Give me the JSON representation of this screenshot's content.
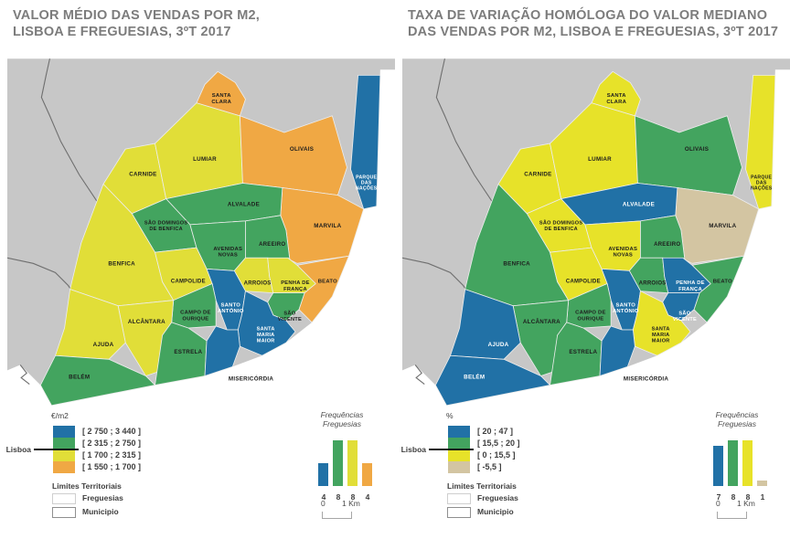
{
  "panels": [
    {
      "title_line1": "VALOR MÉDIO DAS VENDAS POR M2,",
      "title_line2": "LISBOA E FREGUESIAS, 3ºT 2017",
      "legend": {
        "unit": "€/m2",
        "lisboa_label": "Lisboa",
        "classes": [
          {
            "label": "[ 2 750 ; 3 440 ]",
            "color": "#2171A6"
          },
          {
            "label": "[ 2 315 ; 2 750 ]",
            "color": "#43A45F"
          },
          {
            "label": "[ 1 700 ; 2 315 ]",
            "color": "#E1DE38"
          },
          {
            "label": "[ 1 550 ; 1 700 ]",
            "color": "#F0A844"
          }
        ],
        "limites_title": "Limites Territoriais",
        "limites_items": [
          "Freguesias",
          "Municipio"
        ]
      },
      "histogram": {
        "title_line1": "Frequências",
        "title_line2": "Freguesias",
        "values": [
          4,
          8,
          8,
          4
        ]
      },
      "scalebar": {
        "zero": "0",
        "one": "1 Km"
      },
      "region_classes": {
        "carnide": 2,
        "lumiar": 2,
        "santa-clara": 3,
        "olivais": 3,
        "parque-das-nacoes": 0,
        "marvila": 3,
        "beato": 3,
        "alvalade": 1,
        "sao-domingos-de-benfica": 1,
        "avenidas-novas": 1,
        "areeiro": 1,
        "benfica": 2,
        "campolide": 2,
        "arroios": 2,
        "penha-de-franca": 2,
        "santo-antonio": 0,
        "sao-vicente": 1,
        "campo-de-ourique": 1,
        "alcantara": 2,
        "ajuda": 2,
        "belem": 1,
        "estrela": 1,
        "santa-maria-maior": 0,
        "misericordia": 0
      }
    },
    {
      "title_line1": "TAXA DE VARIAÇÃO HOMÓLOGA DO VALOR MEDIANO",
      "title_line2": "DAS VENDAS POR M2, LISBOA E FREGUESIAS, 3ºT 2017",
      "legend": {
        "unit": "%",
        "lisboa_label": "Lisboa",
        "classes": [
          {
            "label": "[ 20 ; 47 ]",
            "color": "#2171A6"
          },
          {
            "label": "[ 15,5 ; 20 ]",
            "color": "#43A45F"
          },
          {
            "label": "[ 0 ; 15,5 ]",
            "color": "#E7E229"
          },
          {
            "label": "[ -5,5 ]",
            "color": "#D3C5A2"
          }
        ],
        "limites_title": "Limites Territoriais",
        "limites_items": [
          "Freguesias",
          "Municipio"
        ]
      },
      "histogram": {
        "title_line1": "Frequências",
        "title_line2": "Freguesias",
        "values": [
          7,
          8,
          8,
          1
        ]
      },
      "scalebar": {
        "zero": "0",
        "one": "1 Km"
      },
      "region_classes": {
        "carnide": 2,
        "lumiar": 2,
        "santa-clara": 2,
        "olivais": 1,
        "parque-das-nacoes": 2,
        "marvila": 3,
        "beato": 1,
        "alvalade": 0,
        "sao-domingos-de-benfica": 2,
        "avenidas-novas": 2,
        "areeiro": 1,
        "benfica": 1,
        "campolide": 2,
        "arroios": 1,
        "penha-de-franca": 0,
        "santo-antonio": 0,
        "sao-vicente": 0,
        "campo-de-ourique": 1,
        "alcantara": 1,
        "ajuda": 0,
        "belem": 0,
        "estrela": 1,
        "santa-maria-maior": 2,
        "misericordia": 0
      }
    }
  ],
  "map": {
    "land_color": "#C7C7C7",
    "border_color": "#EDEDED",
    "municipal_line_color": "#6F6F6F",
    "regions": [
      {
        "id": "carnide",
        "lines": [
          "CARNIDE"
        ]
      },
      {
        "id": "lumiar",
        "lines": [
          "LUMIAR"
        ]
      },
      {
        "id": "santa-clara",
        "lines": [
          "SANTA",
          "CLARA"
        ]
      },
      {
        "id": "olivais",
        "lines": [
          "OLIVAIS"
        ]
      },
      {
        "id": "parque-das-nacoes",
        "lines": [
          "PARQUE",
          "DAS",
          "NAÇÕES"
        ]
      },
      {
        "id": "marvila",
        "lines": [
          "MARVILA"
        ]
      },
      {
        "id": "beato",
        "lines": [
          "BEATO"
        ]
      },
      {
        "id": "alvalade",
        "lines": [
          "ALVALADE"
        ]
      },
      {
        "id": "sao-domingos-de-benfica",
        "lines": [
          "SÃO DOMINGOS",
          "DE BENFICA"
        ]
      },
      {
        "id": "avenidas-novas",
        "lines": [
          "AVENIDAS",
          "NOVAS"
        ]
      },
      {
        "id": "areeiro",
        "lines": [
          "AREEIRO"
        ]
      },
      {
        "id": "benfica",
        "lines": [
          "BENFICA"
        ]
      },
      {
        "id": "campolide",
        "lines": [
          "CAMPOLIDE"
        ]
      },
      {
        "id": "arroios",
        "lines": [
          "ARROIOS"
        ]
      },
      {
        "id": "penha-de-franca",
        "lines": [
          "PENHA DE",
          "FRANÇA"
        ]
      },
      {
        "id": "santo-antonio",
        "lines": [
          "SANTO",
          "ANTÓNIO"
        ]
      },
      {
        "id": "sao-vicente",
        "lines": [
          "SÃO",
          "VICENTE"
        ]
      },
      {
        "id": "campo-de-ourique",
        "lines": [
          "CAMPO DE",
          "OURIQUE"
        ]
      },
      {
        "id": "alcantara",
        "lines": [
          "ALCÂNTARA"
        ]
      },
      {
        "id": "ajuda",
        "lines": [
          "AJUDA"
        ]
      },
      {
        "id": "belem",
        "lines": [
          "BELÉM"
        ]
      },
      {
        "id": "estrela",
        "lines": [
          "ESTRELA"
        ]
      },
      {
        "id": "santa-maria-maior",
        "lines": [
          "SANTA",
          "MARIA",
          "MAIOR"
        ]
      },
      {
        "id": "misericordia",
        "lines": [
          "MISERICÓRDIA"
        ]
      }
    ]
  },
  "chart_data": [
    {
      "type": "bar",
      "title": "Frequências Freguesias",
      "categories": [
        "[ 2 750 ; 3 440 ]",
        "[ 2 315 ; 2 750 ]",
        "[ 1 700 ; 2 315 ]",
        "[ 1 550 ; 1 700 ]"
      ],
      "values": [
        4,
        8,
        8,
        4
      ],
      "colors": [
        "#2171A6",
        "#43A45F",
        "#E1DE38",
        "#F0A844"
      ],
      "xlabel": "€/m2",
      "ylabel": "Frequências Freguesias",
      "ylim": [
        0,
        8
      ]
    },
    {
      "type": "bar",
      "title": "Frequências Freguesias",
      "categories": [
        "[ 20 ; 47 ]",
        "[ 15,5 ; 20 ]",
        "[ 0 ; 15,5 ]",
        "[ -5,5 ]"
      ],
      "values": [
        7,
        8,
        8,
        1
      ],
      "colors": [
        "#2171A6",
        "#43A45F",
        "#E7E229",
        "#D3C5A2"
      ],
      "xlabel": "%",
      "ylabel": "Frequências Freguesias",
      "ylim": [
        0,
        8
      ]
    }
  ]
}
